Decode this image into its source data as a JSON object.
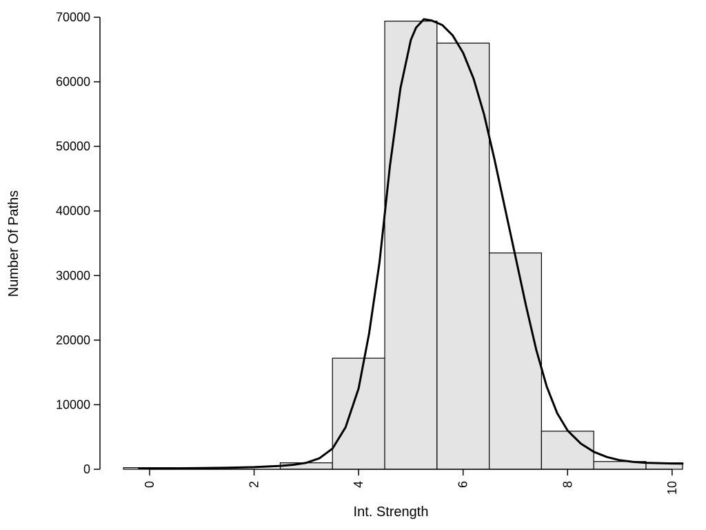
{
  "chart_data": {
    "type": "bar",
    "subtype": "histogram-with-density-curve",
    "title": "",
    "xlabel": "Int. Strength",
    "ylabel": "Number Of Paths",
    "xlim": [
      -0.95,
      10.2
    ],
    "ylim": [
      0,
      70000
    ],
    "x_ticks": [
      0,
      2,
      4,
      6,
      8,
      10
    ],
    "x_tick_labels": [
      "0",
      "2",
      "4",
      "6",
      "8",
      "10"
    ],
    "y_ticks": [
      0,
      10000,
      20000,
      30000,
      40000,
      50000,
      60000,
      70000
    ],
    "y_tick_labels": [
      "0",
      "10000",
      "20000",
      "30000",
      "40000",
      "50000",
      "60000",
      "70000"
    ],
    "grid": false,
    "legend": "none",
    "bar_fill": "#e4e4e4",
    "bar_stroke": "#000000",
    "curve_color": "#000000",
    "axis_color": "#000000",
    "background": "#ffffff",
    "bars": [
      {
        "x0": -0.5,
        "x1": 0.5,
        "value": 250
      },
      {
        "x0": 2.5,
        "x1": 3.5,
        "value": 1000
      },
      {
        "x0": 3.5,
        "x1": 4.5,
        "value": 17200
      },
      {
        "x0": 4.5,
        "x1": 5.5,
        "value": 69400
      },
      {
        "x0": 5.5,
        "x1": 6.5,
        "value": 66000
      },
      {
        "x0": 6.5,
        "x1": 7.5,
        "value": 33500
      },
      {
        "x0": 7.5,
        "x1": 8.5,
        "value": 5900
      },
      {
        "x0": 8.5,
        "x1": 9.5,
        "value": 1200
      },
      {
        "x0": 9.5,
        "x1": 10.2,
        "value": 1000
      }
    ],
    "curve": {
      "x": [
        -0.2,
        0,
        0.5,
        1,
        1.5,
        2,
        2.5,
        2.75,
        3,
        3.25,
        3.5,
        3.75,
        4,
        4.2,
        4.4,
        4.6,
        4.8,
        5,
        5.1,
        5.25,
        5.4,
        5.6,
        5.8,
        6,
        6.2,
        6.4,
        6.6,
        6.8,
        7,
        7.2,
        7.4,
        7.6,
        7.8,
        8,
        8.25,
        8.5,
        8.75,
        9,
        9.25,
        9.5,
        9.75,
        10,
        10.2
      ],
      "y": [
        120,
        130,
        150,
        180,
        230,
        330,
        520,
        700,
        1000,
        1700,
        3200,
        6500,
        12500,
        21000,
        32000,
        47000,
        59000,
        66500,
        68400,
        69700,
        69500,
        68800,
        67200,
        64500,
        60500,
        55000,
        48000,
        40500,
        33000,
        25500,
        18500,
        12800,
        8700,
        6000,
        4000,
        2700,
        1900,
        1400,
        1150,
        1000,
        950,
        900,
        880
      ]
    }
  }
}
